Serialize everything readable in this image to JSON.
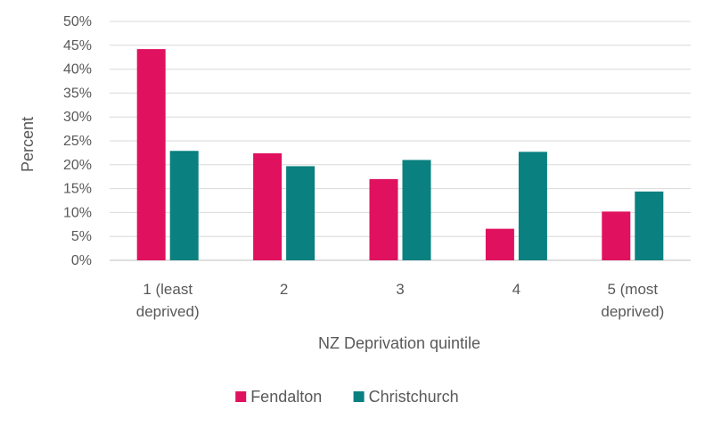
{
  "chart_data": {
    "type": "bar",
    "title": "",
    "xlabel": "NZ Deprivation quintile",
    "ylabel": "Percent",
    "ylim": [
      0,
      50
    ],
    "y_tick_step": 5,
    "y_tick_format": "percent",
    "grid": true,
    "legend_position": "bottom",
    "categories": [
      [
        "1 (least",
        "deprived)"
      ],
      [
        "2"
      ],
      [
        "3"
      ],
      [
        "4"
      ],
      [
        "5 (most",
        "deprived)"
      ]
    ],
    "series": [
      {
        "name": "Fendalton",
        "color": "#E0115F",
        "values": [
          44.2,
          22.4,
          17.0,
          6.6,
          10.2
        ]
      },
      {
        "name": "Christchurch",
        "color": "#0A8080",
        "values": [
          22.9,
          19.7,
          21.0,
          22.7,
          14.4
        ]
      }
    ]
  }
}
